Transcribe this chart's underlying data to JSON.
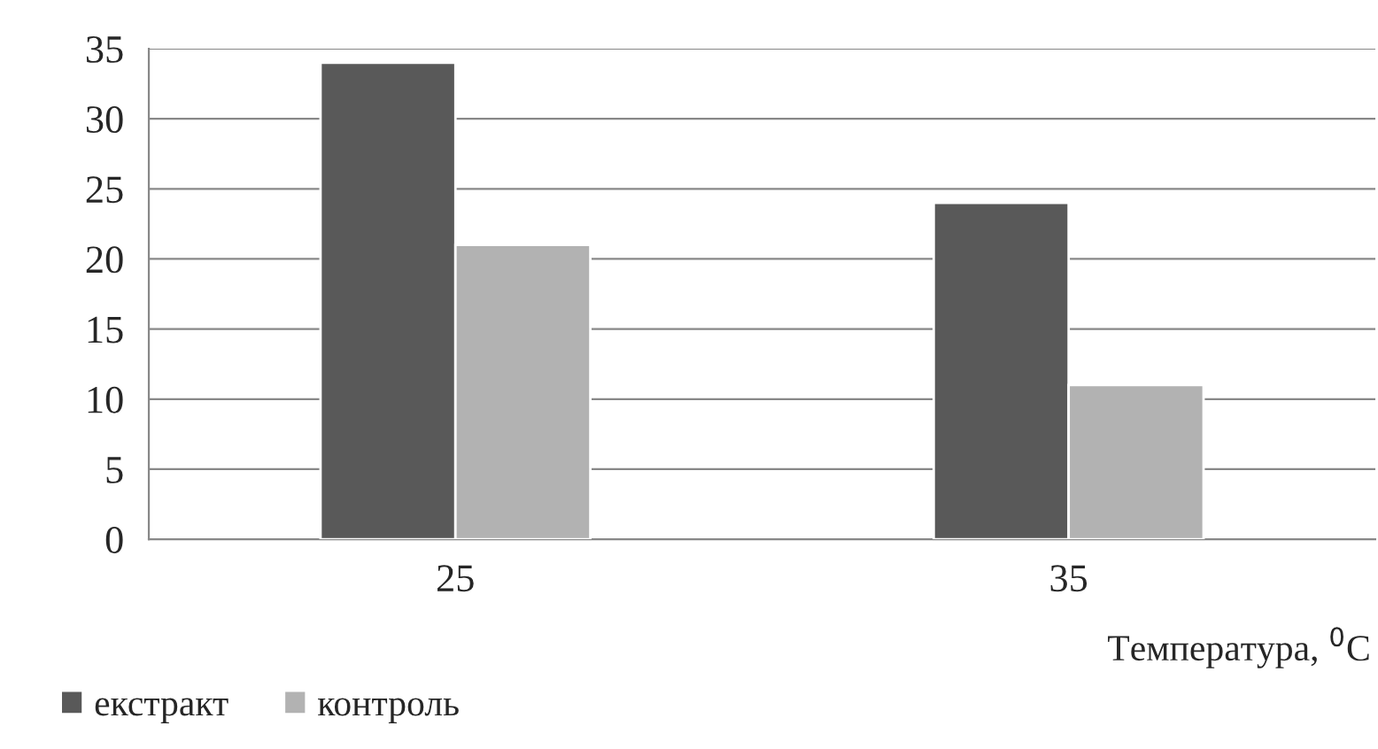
{
  "chart_data": {
    "type": "bar",
    "categories": [
      "25",
      "35"
    ],
    "series": [
      {
        "name": "екстракт",
        "color": "#595959",
        "values": [
          34,
          24
        ]
      },
      {
        "name": "контроль",
        "color": "#b2b2b2",
        "values": [
          21,
          11
        ]
      }
    ],
    "xlabel": "Температура, $^{0}$C",
    "ylim": [
      0,
      35
    ],
    "yticks": [
      0,
      5,
      10,
      15,
      20,
      25,
      30,
      35
    ],
    "grid": "y",
    "legend": "bottom left"
  }
}
